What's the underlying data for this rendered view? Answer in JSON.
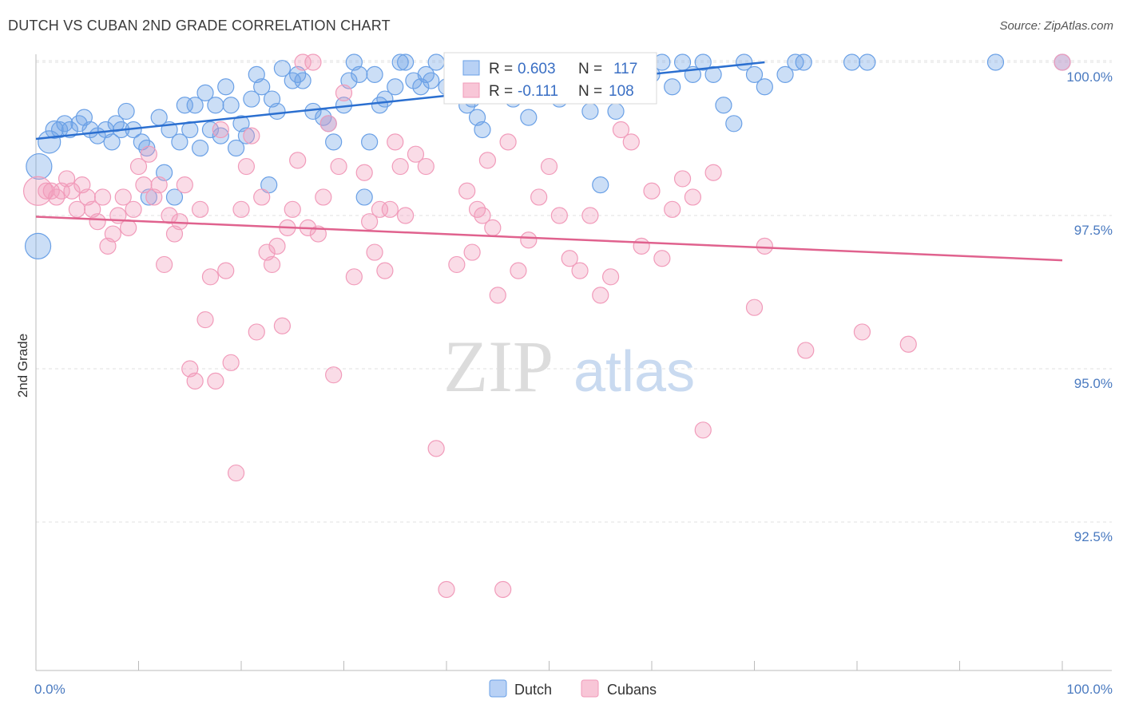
{
  "title": "DUTCH VS CUBAN 2ND GRADE CORRELATION CHART",
  "source": "Source: ZipAtlas.com",
  "watermark": {
    "zip": "ZIP",
    "atlas": "atlas"
  },
  "chart_data": {
    "type": "scatter",
    "title": "DUTCH VS CUBAN 2ND GRADE CORRELATION CHART",
    "xlabel": "",
    "ylabel": "2nd Grade",
    "xlim": [
      0,
      100
    ],
    "ylim": [
      90.5,
      100.4
    ],
    "x_tick_labels": [
      "0.0%",
      "100.0%"
    ],
    "y_ticks": [
      100.0,
      97.5,
      95.0,
      92.5
    ],
    "y_tick_labels": [
      "100.0%",
      "97.5%",
      "95.0%",
      "92.5%"
    ],
    "grid": true,
    "legend_position": "bottom-center",
    "stats": [
      {
        "r_label": "R =",
        "r": "0.603",
        "n_label": "N =",
        "n": "117"
      },
      {
        "r_label": "R =",
        "r": "-0.111",
        "n_label": "N =",
        "n": "108"
      }
    ],
    "series": [
      {
        "name": "Dutch",
        "color": "#6aa0e6",
        "line_color": "#2b6fd0",
        "trend": {
          "x": [
            0,
            71
          ],
          "y": [
            98.75,
            100.0
          ]
        },
        "points": [
          [
            0.2,
            97.0,
            16
          ],
          [
            0.3,
            98.3,
            16
          ],
          [
            1.3,
            98.7,
            14
          ],
          [
            1.8,
            98.9,
            11
          ],
          [
            2.3,
            98.9,
            10
          ],
          [
            2.8,
            99.0,
            10
          ],
          [
            3.3,
            98.9,
            10
          ],
          [
            4.2,
            99.0,
            10
          ],
          [
            4.7,
            99.1,
            10
          ],
          [
            5.3,
            98.9,
            10
          ],
          [
            6.0,
            98.8,
            10
          ],
          [
            6.8,
            98.9,
            10
          ],
          [
            7.4,
            98.7,
            10
          ],
          [
            7.8,
            99.0,
            10
          ],
          [
            8.3,
            98.9,
            10
          ],
          [
            8.8,
            99.2,
            10
          ],
          [
            9.5,
            98.9,
            10
          ],
          [
            10.3,
            98.7,
            10
          ],
          [
            10.8,
            98.6,
            10
          ],
          [
            11.0,
            97.8,
            10
          ],
          [
            12.0,
            99.1,
            10
          ],
          [
            12.5,
            98.2,
            10
          ],
          [
            13.0,
            98.9,
            10
          ],
          [
            13.5,
            97.8,
            10
          ],
          [
            14.0,
            98.7,
            10
          ],
          [
            14.5,
            99.3,
            10
          ],
          [
            15.0,
            98.9,
            10
          ],
          [
            15.5,
            99.3,
            10
          ],
          [
            16.0,
            98.6,
            10
          ],
          [
            16.5,
            99.5,
            10
          ],
          [
            17.0,
            98.9,
            10
          ],
          [
            17.5,
            99.3,
            10
          ],
          [
            18.0,
            98.8,
            10
          ],
          [
            18.5,
            99.6,
            10
          ],
          [
            19.0,
            99.3,
            10
          ],
          [
            19.5,
            98.6,
            10
          ],
          [
            20.0,
            99.0,
            10
          ],
          [
            20.5,
            98.8,
            10
          ],
          [
            21.0,
            99.4,
            10
          ],
          [
            21.5,
            99.8,
            10
          ],
          [
            22.0,
            99.6,
            10
          ],
          [
            22.7,
            98.0,
            10
          ],
          [
            23.0,
            99.4,
            10
          ],
          [
            23.5,
            99.2,
            10
          ],
          [
            24.0,
            99.9,
            10
          ],
          [
            25.0,
            99.7,
            10
          ],
          [
            25.5,
            99.8,
            10
          ],
          [
            26.0,
            99.7,
            10
          ],
          [
            27.0,
            99.2,
            10
          ],
          [
            28.0,
            99.1,
            10
          ],
          [
            29.0,
            98.7,
            10
          ],
          [
            28.5,
            99.0,
            10
          ],
          [
            30.0,
            99.3,
            10
          ],
          [
            30.5,
            99.7,
            10
          ],
          [
            31.0,
            100.0,
            10
          ],
          [
            31.5,
            99.8,
            10
          ],
          [
            32.0,
            97.8,
            10
          ],
          [
            32.5,
            98.7,
            10
          ],
          [
            33.0,
            99.8,
            10
          ],
          [
            33.5,
            99.3,
            10
          ],
          [
            34.0,
            99.4,
            10
          ],
          [
            35.0,
            99.6,
            10
          ],
          [
            35.5,
            100.0,
            10
          ],
          [
            36.0,
            100.0,
            10
          ],
          [
            36.8,
            99.7,
            10
          ],
          [
            37.5,
            99.6,
            10
          ],
          [
            38.0,
            99.8,
            10
          ],
          [
            38.5,
            99.7,
            10
          ],
          [
            39.0,
            100.0,
            10
          ],
          [
            40.0,
            99.6,
            10
          ],
          [
            40.8,
            99.7,
            10
          ],
          [
            41.5,
            100.0,
            10
          ],
          [
            42.0,
            99.3,
            10
          ],
          [
            42.5,
            99.4,
            10
          ],
          [
            43.0,
            99.1,
            10
          ],
          [
            43.5,
            98.9,
            10
          ],
          [
            44.0,
            99.8,
            10
          ],
          [
            44.5,
            100.0,
            10
          ],
          [
            45.0,
            99.6,
            10
          ],
          [
            45.5,
            99.7,
            10
          ],
          [
            46.0,
            100.0,
            10
          ],
          [
            46.5,
            99.4,
            10
          ],
          [
            47.0,
            99.8,
            10
          ],
          [
            47.5,
            99.6,
            10
          ],
          [
            48.0,
            99.1,
            10
          ],
          [
            48.5,
            100.0,
            10
          ],
          [
            49.0,
            99.6,
            10
          ],
          [
            49.5,
            100.0,
            10
          ],
          [
            50.5,
            99.9,
            10
          ],
          [
            51.0,
            99.4,
            10
          ],
          [
            51.5,
            99.7,
            10
          ],
          [
            52.0,
            100.0,
            10
          ],
          [
            53.0,
            99.8,
            10
          ],
          [
            53.5,
            99.6,
            10
          ],
          [
            54.0,
            99.2,
            10
          ],
          [
            55.0,
            98.0,
            10
          ],
          [
            56.5,
            99.2,
            10
          ],
          [
            57.0,
            100.0,
            10
          ],
          [
            58.0,
            99.6,
            10
          ],
          [
            59.0,
            100.0,
            10
          ],
          [
            60.0,
            99.8,
            10
          ],
          [
            61.0,
            100.0,
            10
          ],
          [
            62.0,
            99.6,
            10
          ],
          [
            63.0,
            100.0,
            10
          ],
          [
            64.0,
            99.8,
            10
          ],
          [
            65.0,
            100.0,
            10
          ],
          [
            66.0,
            99.8,
            10
          ],
          [
            67.0,
            99.3,
            10
          ],
          [
            68.0,
            99.0,
            10
          ],
          [
            69.0,
            100.0,
            10
          ],
          [
            70.0,
            99.8,
            10
          ],
          [
            71.0,
            99.6,
            10
          ],
          [
            73.0,
            99.8,
            10
          ],
          [
            74.0,
            100.0,
            10
          ],
          [
            81.0,
            100.0,
            10
          ],
          [
            100.0,
            100.0,
            10
          ],
          [
            93.5,
            100.0,
            10
          ],
          [
            79.5,
            100.0,
            10
          ],
          [
            74.8,
            100.0,
            10
          ]
        ]
      },
      {
        "name": "Cubans",
        "color": "#f19bba",
        "line_color": "#e0628e",
        "trend": {
          "x": [
            0,
            100
          ],
          "y": [
            97.48,
            96.77
          ]
        },
        "points": [
          [
            0.2,
            97.9,
            18
          ],
          [
            1.0,
            97.9,
            10
          ],
          [
            1.5,
            97.9,
            10
          ],
          [
            2.0,
            97.8,
            10
          ],
          [
            2.5,
            97.9,
            10
          ],
          [
            3.0,
            98.1,
            10
          ],
          [
            3.5,
            97.9,
            10
          ],
          [
            4.0,
            97.6,
            10
          ],
          [
            4.5,
            98.0,
            10
          ],
          [
            5.0,
            97.8,
            10
          ],
          [
            5.5,
            97.6,
            10
          ],
          [
            6.0,
            97.4,
            10
          ],
          [
            6.5,
            97.8,
            10
          ],
          [
            7.0,
            97.0,
            10
          ],
          [
            7.5,
            97.2,
            10
          ],
          [
            8.0,
            97.5,
            10
          ],
          [
            8.5,
            97.8,
            10
          ],
          [
            9.0,
            97.3,
            10
          ],
          [
            9.5,
            97.6,
            10
          ],
          [
            10.0,
            98.3,
            10
          ],
          [
            10.5,
            98.0,
            10
          ],
          [
            11.0,
            98.5,
            10
          ],
          [
            11.5,
            97.8,
            10
          ],
          [
            12.0,
            98.0,
            10
          ],
          [
            12.5,
            96.7,
            10
          ],
          [
            13.0,
            97.5,
            10
          ],
          [
            13.5,
            97.2,
            10
          ],
          [
            14.0,
            97.4,
            10
          ],
          [
            14.5,
            98.0,
            10
          ],
          [
            15.0,
            95.0,
            10
          ],
          [
            15.5,
            94.8,
            10
          ],
          [
            16.0,
            97.6,
            10
          ],
          [
            16.5,
            95.8,
            10
          ],
          [
            17.0,
            96.5,
            10
          ],
          [
            17.5,
            94.8,
            10
          ],
          [
            18.0,
            98.9,
            10
          ],
          [
            18.5,
            96.6,
            10
          ],
          [
            19.0,
            95.1,
            10
          ],
          [
            19.5,
            93.3,
            10
          ],
          [
            20.0,
            97.6,
            10
          ],
          [
            20.5,
            98.3,
            10
          ],
          [
            21.0,
            98.8,
            10
          ],
          [
            21.5,
            95.6,
            10
          ],
          [
            22.0,
            97.8,
            10
          ],
          [
            22.5,
            96.9,
            10
          ],
          [
            23.0,
            96.7,
            10
          ],
          [
            23.5,
            97.0,
            10
          ],
          [
            24.0,
            95.7,
            10
          ],
          [
            24.5,
            97.3,
            10
          ],
          [
            25.0,
            97.6,
            10
          ],
          [
            25.5,
            98.4,
            10
          ],
          [
            26.0,
            100.0,
            10
          ],
          [
            26.5,
            97.3,
            10
          ],
          [
            27.0,
            100.0,
            10
          ],
          [
            27.5,
            97.2,
            10
          ],
          [
            28.0,
            97.8,
            10
          ],
          [
            28.5,
            99.0,
            10
          ],
          [
            29.0,
            94.9,
            10
          ],
          [
            29.5,
            98.3,
            10
          ],
          [
            30.0,
            99.5,
            10
          ],
          [
            31.0,
            96.5,
            10
          ],
          [
            32.0,
            98.2,
            10
          ],
          [
            32.5,
            97.4,
            10
          ],
          [
            33.0,
            96.9,
            10
          ],
          [
            33.5,
            97.6,
            10
          ],
          [
            34.0,
            96.6,
            10
          ],
          [
            34.5,
            97.6,
            10
          ],
          [
            35.0,
            98.7,
            10
          ],
          [
            35.5,
            98.3,
            10
          ],
          [
            36.0,
            97.5,
            10
          ],
          [
            37.0,
            98.5,
            10
          ],
          [
            38.0,
            98.3,
            10
          ],
          [
            39.0,
            93.7,
            10
          ],
          [
            40.0,
            91.4,
            10
          ],
          [
            41.0,
            96.7,
            10
          ],
          [
            42.0,
            97.9,
            10
          ],
          [
            42.5,
            96.9,
            10
          ],
          [
            43.0,
            97.6,
            10
          ],
          [
            43.5,
            97.5,
            10
          ],
          [
            44.0,
            98.4,
            10
          ],
          [
            44.5,
            97.3,
            10
          ],
          [
            45.0,
            96.2,
            10
          ],
          [
            45.5,
            91.4,
            10
          ],
          [
            46.0,
            98.7,
            10
          ],
          [
            47.0,
            96.6,
            10
          ],
          [
            48.0,
            97.1,
            10
          ],
          [
            49.0,
            97.8,
            10
          ],
          [
            50.0,
            98.3,
            10
          ],
          [
            51.0,
            97.5,
            10
          ],
          [
            52.0,
            96.8,
            10
          ],
          [
            53.0,
            96.6,
            10
          ],
          [
            54.0,
            97.5,
            10
          ],
          [
            55.0,
            96.2,
            10
          ],
          [
            56.0,
            96.5,
            10
          ],
          [
            57.0,
            98.9,
            10
          ],
          [
            58.0,
            98.7,
            10
          ],
          [
            59.0,
            97.0,
            10
          ],
          [
            60.0,
            97.9,
            10
          ],
          [
            61.0,
            96.8,
            10
          ],
          [
            62.0,
            97.6,
            10
          ],
          [
            63.0,
            98.1,
            10
          ],
          [
            64.0,
            97.8,
            10
          ],
          [
            65.0,
            94.0,
            10
          ],
          [
            66.0,
            98.2,
            10
          ],
          [
            70.0,
            96.0,
            10
          ],
          [
            71.0,
            97.0,
            10
          ],
          [
            75.0,
            95.3,
            10
          ],
          [
            80.5,
            95.6,
            10
          ],
          [
            85.0,
            95.4,
            10
          ],
          [
            100.0,
            100.0,
            10
          ]
        ]
      }
    ]
  }
}
